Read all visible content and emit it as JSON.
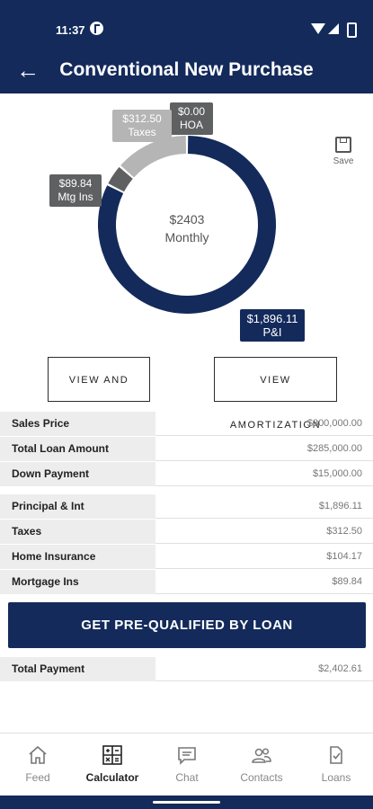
{
  "status_bar": {
    "time": "11:37"
  },
  "header": {
    "title": "Conventional New Purchase"
  },
  "chart_data": {
    "type": "pie",
    "center_amount": "$2403",
    "center_label": "Monthly",
    "slices": [
      {
        "label": "P&I",
        "display": "$1,896.11",
        "value": 1896.11,
        "color": "#132a5b"
      },
      {
        "label": "Mtg Ins",
        "display": "$89.84",
        "value": 89.84,
        "color": "#5f6061"
      },
      {
        "label": "Taxes",
        "display": "$312.50",
        "value": 312.5,
        "color": "#b5b5b5"
      },
      {
        "label": "HOA",
        "display": "$0.00",
        "value": 0.0,
        "color": "#5f6061"
      }
    ]
  },
  "save_label": "Save",
  "buttons": {
    "view_share": "VIEW AND SHARE",
    "view_amortization": "VIEW AMORTIZATION"
  },
  "loan_table": [
    {
      "label": "Sales Price",
      "value": "$300,000.00"
    },
    {
      "label": "Total Loan Amount",
      "value": "$285,000.00"
    },
    {
      "label": "Down Payment",
      "value": "$15,000.00"
    }
  ],
  "payment_table": [
    {
      "label": "Principal & Int",
      "value": "$1,896.11"
    },
    {
      "label": "Taxes",
      "value": "$312.50"
    },
    {
      "label": "Home Insurance",
      "value": "$104.17"
    },
    {
      "label": "Mortgage Ins",
      "value": "$89.84"
    }
  ],
  "cta_label": "GET PRE-QUALIFIED BY LOAN",
  "total_row": {
    "label": "Total Payment",
    "value": "$2,402.61"
  },
  "nav": [
    {
      "label": "Feed",
      "icon": "home-icon"
    },
    {
      "label": "Calculator",
      "icon": "calculator-icon"
    },
    {
      "label": "Chat",
      "icon": "chat-icon"
    },
    {
      "label": "Contacts",
      "icon": "contacts-icon"
    },
    {
      "label": "Loans",
      "icon": "loans-icon"
    }
  ]
}
